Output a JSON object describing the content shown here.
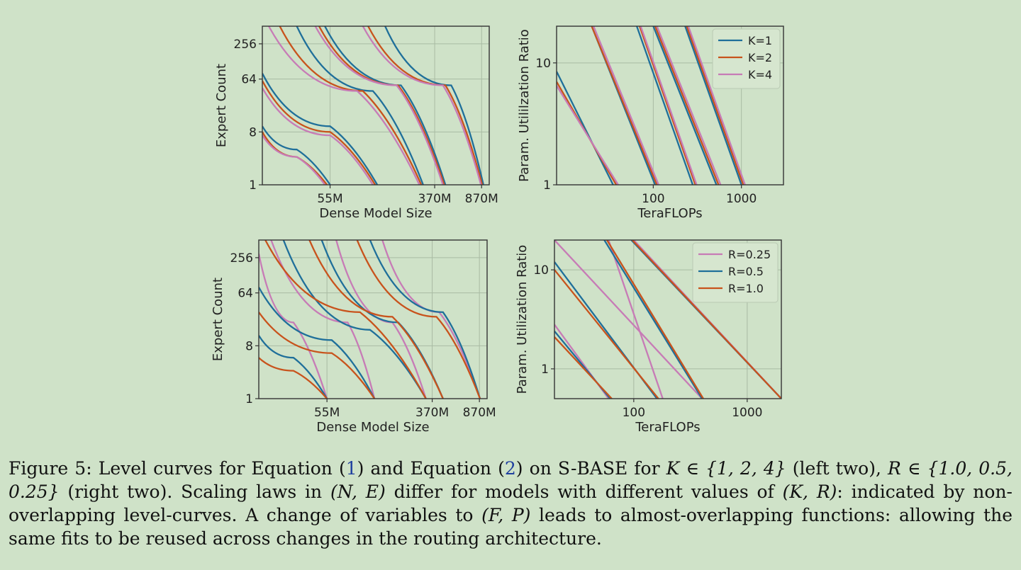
{
  "figure": {
    "chart_data": [
      {
        "type": "line",
        "panel": "top-left",
        "title": "",
        "xlabel": "Dense Model Size",
        "ylabel": "Expert Count",
        "x_tick_labels": [
          "55M",
          "370M",
          "870M"
        ],
        "x_tick_values": [
          55,
          370,
          870
        ],
        "xlim": [
          16,
          1000
        ],
        "xscale": "log",
        "y_tick_labels": [
          "1",
          "8",
          "64",
          "256"
        ],
        "y_tick_values": [
          1,
          8,
          64,
          256
        ],
        "ylim": [
          1,
          512
        ],
        "yscale": "log",
        "legend": [],
        "series": [
          {
            "name": "K=1",
            "color": "#1f6f9a",
            "points": [
              [
                [
                  16,
                  10
                ],
                [
                  30,
                  4
                ],
                [
                  55,
                  1
                ]
              ],
              [
                [
                  16,
                  80
                ],
                [
                  55,
                  10
                ],
                [
                  130,
                  1
                ]
              ],
              [
                [
                  30,
                  512
                ],
                [
                  120,
                  40
                ],
                [
                  300,
                  1
                ]
              ],
              [
                [
                  50,
                  512
                ],
                [
                  200,
                  50
                ],
                [
                  450,
                  1
                ]
              ],
              [
                [
                  150,
                  512
                ],
                [
                  500,
                  50
                ],
                [
                  900,
                  1
                ]
              ]
            ]
          },
          {
            "name": "K=2",
            "color": "#c8531c",
            "points": [
              [
                [
                  16,
                  8
                ],
                [
                  30,
                  3
                ],
                [
                  52,
                  1
                ]
              ],
              [
                [
                  16,
                  60
                ],
                [
                  55,
                  8
                ],
                [
                  125,
                  1
                ]
              ],
              [
                [
                  22,
                  512
                ],
                [
                  100,
                  40
                ],
                [
                  290,
                  1
                ]
              ],
              [
                [
                  45,
                  512
                ],
                [
                  190,
                  50
                ],
                [
                  440,
                  1
                ]
              ],
              [
                [
                  110,
                  512
                ],
                [
                  450,
                  50
                ],
                [
                  880,
                  1
                ]
              ]
            ]
          },
          {
            "name": "K=4",
            "color": "#c77bb6",
            "points": [
              [
                [
                  16,
                  7
                ],
                [
                  30,
                  3
                ],
                [
                  50,
                  1
                ]
              ],
              [
                [
                  16,
                  45
                ],
                [
                  55,
                  7
                ],
                [
                  120,
                  1
                ]
              ],
              [
                [
                  18,
                  512
                ],
                [
                  90,
                  40
                ],
                [
                  280,
                  1
                ]
              ],
              [
                [
                  42,
                  512
                ],
                [
                  185,
                  50
                ],
                [
                  430,
                  1
                ]
              ],
              [
                [
                  100,
                  512
                ],
                [
                  430,
                  50
                ],
                [
                  860,
                  1
                ]
              ]
            ]
          }
        ]
      },
      {
        "type": "line",
        "panel": "top-right",
        "title": "",
        "xlabel": "TeraFLOPs",
        "ylabel": "Param. Utililzation Ratio",
        "x_tick_labels": [
          "100",
          "1000"
        ],
        "x_tick_values": [
          100,
          1000
        ],
        "xlim": [
          8,
          3000
        ],
        "xscale": "log",
        "y_tick_labels": [
          "1",
          "10"
        ],
        "y_tick_values": [
          1,
          10
        ],
        "ylim": [
          1,
          20
        ],
        "yscale": "log",
        "legend": [
          "K=1",
          "K=2",
          "K=4"
        ],
        "series": [
          {
            "name": "K=1",
            "color": "#1f6f9a",
            "points": [
              [
                [
                  8,
                  8.5
                ],
                [
                  35,
                  1
                ]
              ],
              [
                [
                  20,
                  20
                ],
                [
                  105,
                  1
                ]
              ],
              [
                [
                  65,
                  20
                ],
                [
                  280,
                  1
                ]
              ],
              [
                [
                  100,
                  20
                ],
                [
                  520,
                  1
                ]
              ],
              [
                [
                  230,
                  20
                ],
                [
                  1000,
                  1
                ]
              ]
            ]
          },
          {
            "name": "K=2",
            "color": "#c8531c",
            "points": [
              [
                [
                  8,
                  7
                ],
                [
                  38,
                  1
                ]
              ],
              [
                [
                  20,
                  20
                ],
                [
                  110,
                  1
                ]
              ],
              [
                [
                  70,
                  20
                ],
                [
                  300,
                  1
                ]
              ],
              [
                [
                  105,
                  20
                ],
                [
                  550,
                  1
                ]
              ],
              [
                [
                  240,
                  20
                ],
                [
                  1050,
                  1
                ]
              ]
            ]
          },
          {
            "name": "K=4",
            "color": "#c77bb6",
            "points": [
              [
                [
                  8,
                  6.5
                ],
                [
                  40,
                  1
                ]
              ],
              [
                [
                  21,
                  20
                ],
                [
                  115,
                  1
                ]
              ],
              [
                [
                  72,
                  20
                ],
                [
                  310,
                  1
                ]
              ],
              [
                [
                  110,
                  20
                ],
                [
                  580,
                  1
                ]
              ],
              [
                [
                  250,
                  20
                ],
                [
                  1100,
                  1
                ]
              ]
            ]
          }
        ]
      },
      {
        "type": "line",
        "panel": "bottom-left",
        "title": "",
        "xlabel": "Dense Model Size",
        "ylabel": "Expert Count",
        "x_tick_labels": [
          "55M",
          "370M",
          "870M"
        ],
        "x_tick_values": [
          55,
          370,
          870
        ],
        "xlim": [
          16,
          1000
        ],
        "xscale": "log",
        "y_tick_labels": [
          "1",
          "8",
          "64",
          "256"
        ],
        "y_tick_values": [
          1,
          8,
          64,
          256
        ],
        "ylim": [
          1,
          512
        ],
        "yscale": "log",
        "legend": [],
        "series": [
          {
            "name": "R=0.25",
            "color": "#c77bb6",
            "points": [
              [
                [
                  16,
                  300
                ],
                [
                  30,
                  20
                ],
                [
                  55,
                  1
                ]
              ],
              [
                [
                  20,
                  512
                ],
                [
                  80,
                  20
                ],
                [
                  130,
                  1
                ]
              ],
              [
                [
                  65,
                  512
                ],
                [
                  180,
                  20
                ],
                [
                  330,
                  1
                ]
              ],
              [
                [
                  150,
                  512
                ],
                [
                  420,
                  30
                ],
                [
                  880,
                  1
                ]
              ]
            ]
          },
          {
            "name": "R=0.5",
            "color": "#1f6f9a",
            "points": [
              [
                [
                  16,
                  12
                ],
                [
                  30,
                  5
                ],
                [
                  55,
                  1
                ]
              ],
              [
                [
                  16,
                  80
                ],
                [
                  60,
                  10
                ],
                [
                  130,
                  1
                ]
              ],
              [
                [
                  25,
                  512
                ],
                [
                  120,
                  15
                ],
                [
                  330,
                  1
                ]
              ],
              [
                [
                  50,
                  512
                ],
                [
                  200,
                  20
                ],
                [
                  450,
                  1
                ]
              ],
              [
                [
                  120,
                  512
                ],
                [
                  450,
                  30
                ],
                [
                  880,
                  1
                ]
              ]
            ]
          },
          {
            "name": "R=1.0",
            "color": "#c8531c",
            "points": [
              [
                [
                  16,
                  5
                ],
                [
                  30,
                  3
                ],
                [
                  55,
                  1
                ]
              ],
              [
                [
                  16,
                  30
                ],
                [
                  60,
                  6
                ],
                [
                  130,
                  1
                ]
              ],
              [
                [
                  18,
                  512
                ],
                [
                  100,
                  30
                ],
                [
                  330,
                  1
                ]
              ],
              [
                [
                  40,
                  512
                ],
                [
                  180,
                  25
                ],
                [
                  450,
                  1
                ]
              ],
              [
                [
                  95,
                  512
                ],
                [
                  400,
                  25
                ],
                [
                  880,
                  1
                ]
              ]
            ]
          }
        ]
      },
      {
        "type": "line",
        "panel": "bottom-right",
        "title": "",
        "xlabel": "TeraFLOPs",
        "ylabel": "Param. Utilization Ratio",
        "x_tick_labels": [
          "100",
          "1000"
        ],
        "x_tick_values": [
          100,
          1000
        ],
        "xlim": [
          20,
          2000
        ],
        "xscale": "log",
        "y_tick_labels": [
          "1",
          "10"
        ],
        "y_tick_values": [
          1,
          10
        ],
        "ylim": [
          0.5,
          20
        ],
        "yscale": "log",
        "legend": [
          "R=0.25",
          "R=0.5",
          "R=1.0"
        ],
        "series": [
          {
            "name": "R=0.25",
            "color": "#c77bb6",
            "points": [
              [
                [
                  20,
                  2.8
                ],
                [
                  60,
                  0.5
                ]
              ],
              [
                [
                  20,
                  20
                ],
                [
                  400,
                  0.5
                ]
              ],
              [
                [
                  60,
                  20
                ],
                [
                  180,
                  0.5
                ]
              ],
              [
                [
                  100,
                  20
                ],
                [
                  2000,
                  0.5
                ]
              ]
            ]
          },
          {
            "name": "R=0.5",
            "color": "#1f6f9a",
            "points": [
              [
                [
                  20,
                  2.4
                ],
                [
                  62,
                  0.5
                ]
              ],
              [
                [
                  20,
                  12
                ],
                [
                  160,
                  0.5
                ]
              ],
              [
                [
                  55,
                  20
                ],
                [
                  400,
                  0.5
                ]
              ],
              [
                [
                  95,
                  20
                ],
                [
                  2000,
                  0.5
                ]
              ]
            ]
          },
          {
            "name": "R=1.0",
            "color": "#c8531c",
            "points": [
              [
                [
                  20,
                  2.1
                ],
                [
                  64,
                  0.5
                ]
              ],
              [
                [
                  20,
                  10
                ],
                [
                  165,
                  0.5
                ]
              ],
              [
                [
                  58,
                  20
                ],
                [
                  410,
                  0.5
                ]
              ],
              [
                [
                  97,
                  20
                ],
                [
                  2000,
                  0.5
                ]
              ]
            ]
          }
        ]
      }
    ]
  },
  "caption": {
    "prefix": "Figure 5: Level curves for Equation (",
    "ref1": "1",
    "mid1": ") and Equation (",
    "ref2": "2",
    "mid2": ") on ",
    "model": "S-BASE",
    "mid3": " for ",
    "kset": "K ∈ {1, 2, 4}",
    "mid4": " (left two), ",
    "rset": "R ∈ {1.0, 0.5, 0.25}",
    "mid5": " (right two). Scaling laws in ",
    "ne": "(N, E)",
    "mid6": " differ for models with different values of ",
    "kr": "(K, R)",
    "mid7": ": indicated by non-overlapping level-curves. A change of variables to ",
    "fp": "(F, P)",
    "suffix": " leads to almost-overlapping functions: allowing the same fits to be reused across changes in the routing architecture."
  }
}
